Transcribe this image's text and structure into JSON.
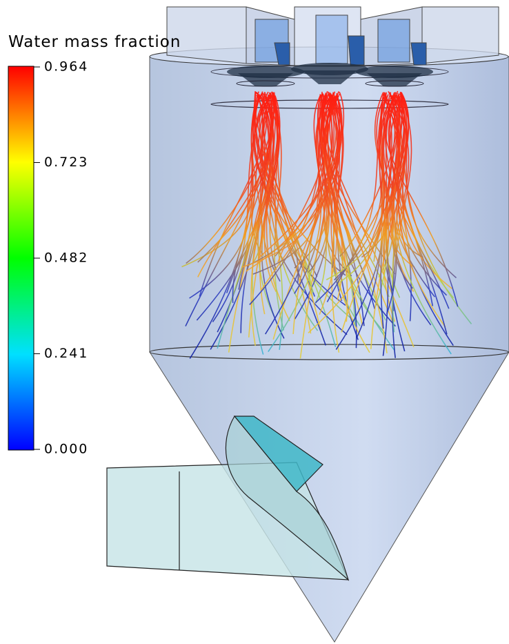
{
  "colorbar": {
    "title": "Water mass fraction",
    "ticks": [
      "0.964",
      "0.723",
      "0.482",
      "0.241",
      "0.000"
    ]
  }
}
